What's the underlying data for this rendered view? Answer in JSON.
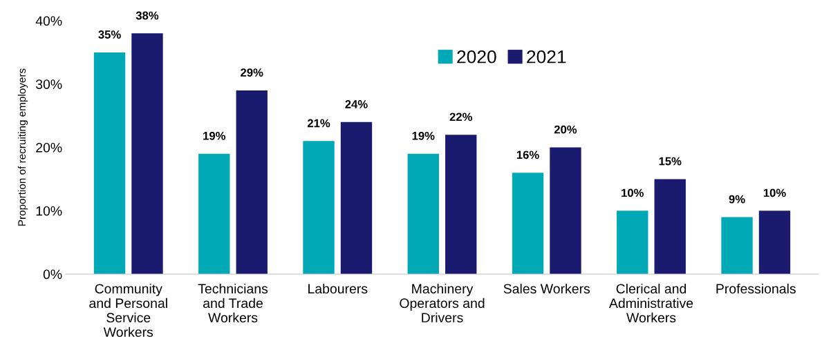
{
  "chart_data": {
    "type": "bar",
    "ylabel": "Proportion of recruiting employers",
    "categories": [
      "Community\nand Personal\nService\nWorkers",
      "Technicians\nand Trade\nWorkers",
      "Labourers",
      "Machinery\nOperators and\nDrivers",
      "Sales Workers",
      "Clerical and\nAdministrative\nWorkers",
      "Professionals"
    ],
    "series": [
      {
        "name": "2020",
        "color": "#00a9b5",
        "values": [
          35,
          19,
          21,
          19,
          16,
          10,
          9
        ],
        "value_labels": [
          "35%",
          "19%",
          "21%",
          "19%",
          "16%",
          "10%",
          "9%"
        ]
      },
      {
        "name": "2021",
        "color": "#1a1a6e",
        "values": [
          38,
          29,
          24,
          22,
          20,
          15,
          10
        ],
        "value_labels": [
          "38%",
          "29%",
          "24%",
          "22%",
          "20%",
          "15%",
          "10%"
        ]
      }
    ],
    "ylim": [
      0,
      40
    ],
    "yticks": [
      {
        "value": 0,
        "label": "0%"
      },
      {
        "value": 10,
        "label": "10%"
      },
      {
        "value": 20,
        "label": "20%"
      },
      {
        "value": 30,
        "label": "30%"
      },
      {
        "value": 40,
        "label": "40%"
      }
    ],
    "grid": false,
    "legend": "top"
  }
}
